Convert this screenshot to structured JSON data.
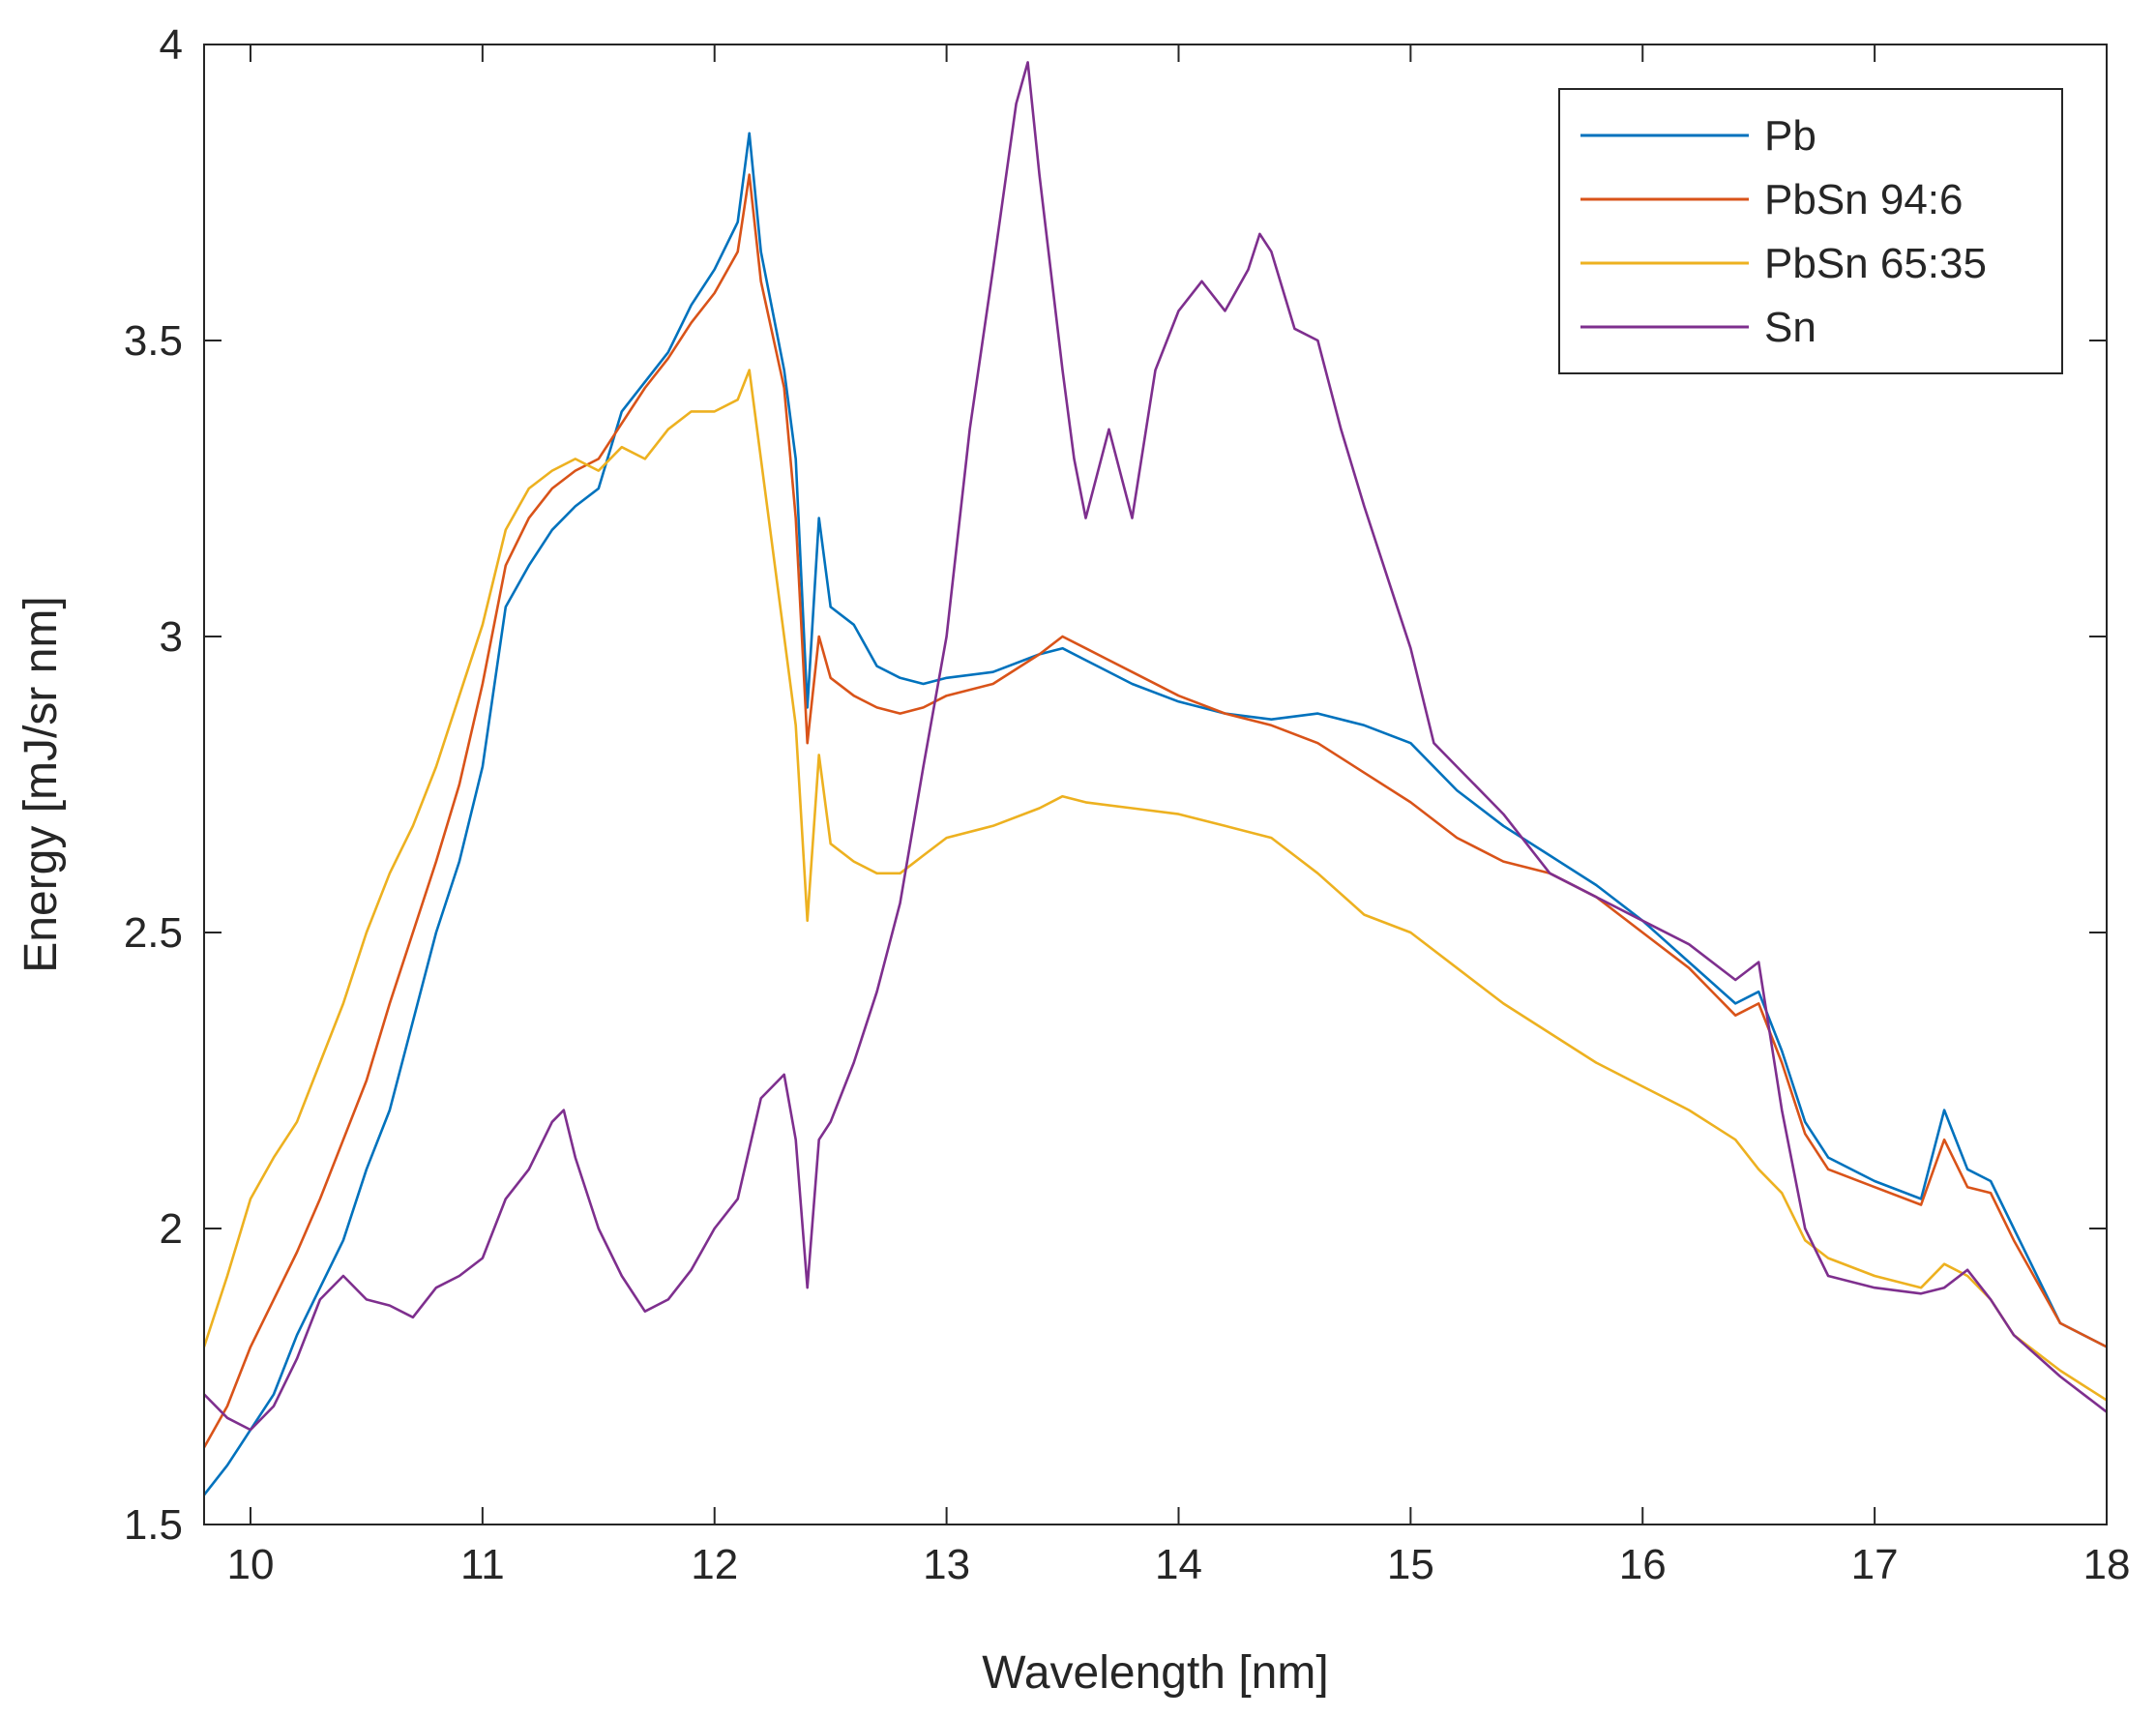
{
  "chart_data": {
    "type": "line",
    "title": "",
    "xlabel": "Wavelength [nm]",
    "ylabel": "Energy [mJ/sr nm]",
    "xlim": [
      9.8,
      18
    ],
    "ylim": [
      1.5,
      4
    ],
    "xticks": [
      10,
      11,
      12,
      13,
      14,
      15,
      16,
      17,
      18
    ],
    "xtick_labels": [
      "10",
      "11",
      "12",
      "13",
      "14",
      "15",
      "16",
      "17",
      "18"
    ],
    "yticks": [
      1.5,
      2,
      2.5,
      3,
      3.5,
      4
    ],
    "ytick_labels": [
      "1.5",
      "2",
      "2.5",
      "3",
      "3.5",
      "4"
    ],
    "grid": false,
    "legend_position": "top-right",
    "series": [
      {
        "name": "Pb",
        "color": "#0072BD",
        "x": [
          9.8,
          9.9,
          10.0,
          10.1,
          10.2,
          10.3,
          10.4,
          10.5,
          10.6,
          10.7,
          10.8,
          10.9,
          11.0,
          11.1,
          11.2,
          11.3,
          11.4,
          11.5,
          11.6,
          11.7,
          11.8,
          11.9,
          12.0,
          12.1,
          12.15,
          12.2,
          12.3,
          12.35,
          12.4,
          12.45,
          12.5,
          12.6,
          12.7,
          12.8,
          12.9,
          13.0,
          13.2,
          13.4,
          13.5,
          13.6,
          13.8,
          14.0,
          14.2,
          14.4,
          14.6,
          14.8,
          15.0,
          15.2,
          15.4,
          15.6,
          15.8,
          16.0,
          16.2,
          16.4,
          16.5,
          16.6,
          16.7,
          16.8,
          17.0,
          17.2,
          17.3,
          17.4,
          17.5,
          17.6,
          17.8,
          18.0
        ],
        "y": [
          1.55,
          1.6,
          1.66,
          1.72,
          1.82,
          1.9,
          1.98,
          2.1,
          2.2,
          2.35,
          2.5,
          2.62,
          2.78,
          3.05,
          3.12,
          3.18,
          3.22,
          3.25,
          3.38,
          3.43,
          3.48,
          3.56,
          3.62,
          3.7,
          3.85,
          3.65,
          3.45,
          3.3,
          2.88,
          3.2,
          3.05,
          3.02,
          2.95,
          2.93,
          2.92,
          2.93,
          2.94,
          2.97,
          2.98,
          2.96,
          2.92,
          2.89,
          2.87,
          2.86,
          2.87,
          2.85,
          2.82,
          2.74,
          2.68,
          2.63,
          2.58,
          2.52,
          2.45,
          2.38,
          2.4,
          2.3,
          2.18,
          2.12,
          2.08,
          2.05,
          2.2,
          2.1,
          2.08,
          2.0,
          1.84,
          1.8
        ]
      },
      {
        "name": "PbSn 94:6",
        "color": "#D95319",
        "x": [
          9.8,
          9.9,
          10.0,
          10.1,
          10.2,
          10.3,
          10.4,
          10.5,
          10.6,
          10.7,
          10.8,
          10.9,
          11.0,
          11.1,
          11.2,
          11.3,
          11.4,
          11.5,
          11.6,
          11.7,
          11.8,
          11.9,
          12.0,
          12.1,
          12.15,
          12.2,
          12.3,
          12.35,
          12.4,
          12.45,
          12.5,
          12.6,
          12.7,
          12.8,
          12.9,
          13.0,
          13.2,
          13.4,
          13.5,
          13.6,
          13.8,
          14.0,
          14.2,
          14.4,
          14.6,
          14.8,
          15.0,
          15.2,
          15.4,
          15.6,
          15.8,
          16.0,
          16.2,
          16.4,
          16.5,
          16.6,
          16.7,
          16.8,
          17.0,
          17.2,
          17.3,
          17.4,
          17.5,
          17.6,
          17.8,
          18.0
        ],
        "y": [
          1.63,
          1.7,
          1.8,
          1.88,
          1.96,
          2.05,
          2.15,
          2.25,
          2.38,
          2.5,
          2.62,
          2.75,
          2.92,
          3.12,
          3.2,
          3.25,
          3.28,
          3.3,
          3.36,
          3.42,
          3.47,
          3.53,
          3.58,
          3.65,
          3.78,
          3.6,
          3.42,
          3.2,
          2.82,
          3.0,
          2.93,
          2.9,
          2.88,
          2.87,
          2.88,
          2.9,
          2.92,
          2.97,
          3.0,
          2.98,
          2.94,
          2.9,
          2.87,
          2.85,
          2.82,
          2.77,
          2.72,
          2.66,
          2.62,
          2.6,
          2.56,
          2.5,
          2.44,
          2.36,
          2.38,
          2.28,
          2.16,
          2.1,
          2.07,
          2.04,
          2.15,
          2.07,
          2.06,
          1.98,
          1.84,
          1.8
        ]
      },
      {
        "name": "PbSn 65:35",
        "color": "#EDB120",
        "x": [
          9.8,
          9.9,
          10.0,
          10.1,
          10.2,
          10.3,
          10.4,
          10.5,
          10.6,
          10.7,
          10.8,
          10.9,
          11.0,
          11.1,
          11.2,
          11.3,
          11.4,
          11.5,
          11.6,
          11.7,
          11.8,
          11.9,
          12.0,
          12.1,
          12.15,
          12.2,
          12.3,
          12.35,
          12.4,
          12.45,
          12.5,
          12.6,
          12.7,
          12.8,
          12.9,
          13.0,
          13.2,
          13.4,
          13.5,
          13.6,
          13.8,
          14.0,
          14.2,
          14.4,
          14.6,
          14.8,
          15.0,
          15.2,
          15.4,
          15.6,
          15.8,
          16.0,
          16.2,
          16.4,
          16.5,
          16.6,
          16.7,
          16.8,
          17.0,
          17.2,
          17.3,
          17.4,
          17.5,
          17.6,
          17.8,
          18.0
        ],
        "y": [
          1.8,
          1.92,
          2.05,
          2.12,
          2.18,
          2.28,
          2.38,
          2.5,
          2.6,
          2.68,
          2.78,
          2.9,
          3.02,
          3.18,
          3.25,
          3.28,
          3.3,
          3.28,
          3.32,
          3.3,
          3.35,
          3.38,
          3.38,
          3.4,
          3.45,
          3.3,
          3.0,
          2.85,
          2.52,
          2.8,
          2.65,
          2.62,
          2.6,
          2.6,
          2.63,
          2.66,
          2.68,
          2.71,
          2.73,
          2.72,
          2.71,
          2.7,
          2.68,
          2.66,
          2.6,
          2.53,
          2.5,
          2.44,
          2.38,
          2.33,
          2.28,
          2.24,
          2.2,
          2.15,
          2.1,
          2.06,
          1.98,
          1.95,
          1.92,
          1.9,
          1.94,
          1.92,
          1.88,
          1.82,
          1.76,
          1.71
        ]
      },
      {
        "name": "Sn",
        "color": "#7E2F8E",
        "x": [
          9.8,
          9.9,
          10.0,
          10.1,
          10.2,
          10.3,
          10.4,
          10.5,
          10.6,
          10.7,
          10.8,
          10.9,
          11.0,
          11.1,
          11.2,
          11.3,
          11.35,
          11.4,
          11.5,
          11.6,
          11.7,
          11.8,
          11.9,
          12.0,
          12.1,
          12.2,
          12.3,
          12.35,
          12.4,
          12.45,
          12.5,
          12.6,
          12.7,
          12.8,
          12.9,
          13.0,
          13.1,
          13.2,
          13.3,
          13.35,
          13.4,
          13.5,
          13.55,
          13.6,
          13.7,
          13.8,
          13.9,
          14.0,
          14.1,
          14.2,
          14.3,
          14.35,
          14.4,
          14.5,
          14.6,
          14.7,
          14.8,
          14.9,
          15.0,
          15.1,
          15.2,
          15.4,
          15.6,
          15.8,
          16.0,
          16.2,
          16.4,
          16.5,
          16.6,
          16.7,
          16.8,
          17.0,
          17.2,
          17.3,
          17.4,
          17.5,
          17.6,
          17.8,
          18.0
        ],
        "y": [
          1.72,
          1.68,
          1.66,
          1.7,
          1.78,
          1.88,
          1.92,
          1.88,
          1.87,
          1.85,
          1.9,
          1.92,
          1.95,
          2.05,
          2.1,
          2.18,
          2.2,
          2.12,
          2.0,
          1.92,
          1.86,
          1.88,
          1.93,
          2.0,
          2.05,
          2.22,
          2.26,
          2.15,
          1.9,
          2.15,
          2.18,
          2.28,
          2.4,
          2.55,
          2.78,
          3.0,
          3.35,
          3.62,
          3.9,
          3.97,
          3.78,
          3.45,
          3.3,
          3.2,
          3.35,
          3.2,
          3.45,
          3.55,
          3.6,
          3.55,
          3.62,
          3.68,
          3.65,
          3.52,
          3.5,
          3.35,
          3.22,
          3.1,
          2.98,
          2.82,
          2.78,
          2.7,
          2.6,
          2.56,
          2.52,
          2.48,
          2.42,
          2.45,
          2.2,
          2.0,
          1.92,
          1.9,
          1.89,
          1.9,
          1.93,
          1.88,
          1.82,
          1.75,
          1.69
        ]
      }
    ]
  }
}
